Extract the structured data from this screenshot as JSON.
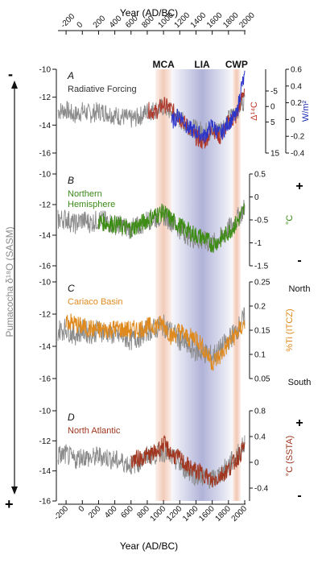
{
  "chart_data": {
    "type": "line",
    "x_label_top": "Year (AD/BC)",
    "x_label_bottom": "Year (AD/BC)",
    "x_ticks": [
      "-200",
      "0",
      "200",
      "400",
      "600",
      "800",
      "1000",
      "1200",
      "1400",
      "1600",
      "1800",
      "2000"
    ],
    "x_tick_values": [
      -200,
      0,
      200,
      400,
      600,
      800,
      1000,
      1200,
      1400,
      1600,
      1800,
      2000
    ],
    "xlim": [
      -300,
      2010
    ],
    "left_axis": {
      "label": "Pumacocha δ¹⁸O (SASM)",
      "top_sign": "-",
      "bottom_sign": "+",
      "ylim": [
        -16,
        -10
      ],
      "ticks": [
        "-10",
        "-12",
        "-14",
        "-16"
      ],
      "tick_values": [
        -10,
        -12,
        -14,
        -16
      ]
    },
    "bands": [
      {
        "label": "MCA",
        "start": 900,
        "end": 1100,
        "color": "#e8a07f"
      },
      {
        "label": "LIA",
        "start": 1100,
        "end": 1850,
        "color": "#6f74b8"
      },
      {
        "label": "CWP",
        "start": 1850,
        "end": 1950,
        "color": "#e8a07f"
      }
    ],
    "panels": [
      {
        "letter": "A",
        "series_label": "Radiative Forcing",
        "label_color": "#333333",
        "right_axes": [
          {
            "label": "Δ¹⁴C",
            "color": "#c0392b",
            "ticks": [
              "-5",
              "0",
              "5",
              "15"
            ],
            "tick_values": [
              -5,
              0,
              5,
              15
            ],
            "ylim": [
              15,
              -12
            ]
          },
          {
            "label": "W/m²",
            "color": "#1f2fb5",
            "ticks": [
              "0.6",
              "0.4",
              "0.2",
              "0",
              "-0.2",
              "-0.4"
            ],
            "tick_values": [
              0.6,
              0.4,
              0.2,
              0,
              -0.2,
              -0.4
            ],
            "ylim": [
              -0.4,
              0.6
            ]
          }
        ],
        "overlay": {
          "color": "#b03a2e",
          "x": [
            800,
            900,
            1000,
            1100,
            1200,
            1300,
            1400,
            1500,
            1600,
            1700,
            1800,
            1900,
            2000
          ],
          "y": [
            -12.9,
            -13.1,
            -12.5,
            -12.9,
            -13.5,
            -14.1,
            -14.9,
            -15.3,
            -14.2,
            -14.9,
            -13.8,
            -13.4,
            -11.3
          ]
        },
        "overlay2": {
          "color": "#2d36c9",
          "x": [
            1100,
            1200,
            1300,
            1400,
            1500,
            1600,
            1700,
            1800,
            1900,
            1960,
            2000
          ],
          "y": [
            -13.8,
            -13.2,
            -14.2,
            -14.5,
            -14.8,
            -14.0,
            -14.7,
            -13.8,
            -13.3,
            -11.2,
            -10.6
          ]
        }
      },
      {
        "letter": "B",
        "series_label": "Northern Hemisphere",
        "series_label_line1": "Northern",
        "series_label_line2": "Hemisphere",
        "label_color": "#3a8a16",
        "right_axes": [
          {
            "label": "°C",
            "color": "#3a8a16",
            "ticks": [
              "0.5",
              "0",
              "-0.5",
              "-1",
              "-1.5"
            ],
            "tick_values": [
              0.5,
              0,
              -0.5,
              -1,
              -1.5
            ],
            "ylim": [
              -1.5,
              0.5
            ]
          }
        ],
        "right_top_sign": "+",
        "right_bottom_sign": "-",
        "overlay": {
          "color": "#3d8c14",
          "x": [
            200,
            400,
            600,
            800,
            900,
            1000,
            1100,
            1200,
            1300,
            1400,
            1500,
            1600,
            1700,
            1800,
            1900,
            2000
          ],
          "y": [
            -13.1,
            -13.3,
            -13.6,
            -13.0,
            -12.7,
            -12.5,
            -13.0,
            -13.4,
            -13.7,
            -14.0,
            -14.2,
            -14.6,
            -14.3,
            -13.8,
            -13.2,
            -12.3
          ]
        }
      },
      {
        "letter": "C",
        "series_label": "Cariaco Basin",
        "label_color": "#e08a1e",
        "right_axes": [
          {
            "label": "%Ti (ITCZ)",
            "color": "#e08a1e",
            "ticks": [
              "0.25",
              "0.2",
              "0.15",
              "0.1",
              "0.05"
            ],
            "tick_values": [
              0.25,
              0.2,
              0.15,
              0.1,
              0.05
            ],
            "ylim": [
              0.05,
              0.25
            ]
          }
        ],
        "right_top_label": "North",
        "right_bottom_label": "South",
        "overlay": {
          "color": "#e08a1e",
          "x": [
            -200,
            0,
            200,
            400,
            600,
            800,
            1000,
            1100,
            1200,
            1300,
            1400,
            1500,
            1600,
            1700,
            1800,
            1900,
            2000
          ],
          "y": [
            -12.4,
            -12.8,
            -13.0,
            -12.9,
            -13.0,
            -12.8,
            -12.6,
            -13.4,
            -13.0,
            -13.5,
            -13.4,
            -14.2,
            -15.0,
            -14.6,
            -13.8,
            -13.2,
            -12.6
          ]
        }
      },
      {
        "letter": "D",
        "series_label": "North Atlantic",
        "label_color": "#a0361f",
        "right_axes": [
          {
            "label": "°C (SSTA)",
            "color": "#a0361f",
            "ticks": [
              "0.8",
              "0.4",
              "0",
              "-0.4"
            ],
            "tick_values": [
              0.8,
              0.4,
              0,
              -0.4
            ],
            "ylim": [
              -0.6,
              0.8
            ]
          }
        ],
        "right_top_sign": "+",
        "right_bottom_sign": "-",
        "overlay": {
          "color": "#a0361f",
          "x": [
            600,
            800,
            900,
            1000,
            1100,
            1200,
            1300,
            1400,
            1500,
            1600,
            1700,
            1800,
            1900,
            2000
          ],
          "y": [
            -13.3,
            -13.0,
            -12.8,
            -12.2,
            -12.9,
            -13.2,
            -13.7,
            -14.0,
            -14.2,
            -14.7,
            -14.3,
            -13.9,
            -13.2,
            -12.4
          ]
        }
      }
    ],
    "base_series": {
      "name": "",
      "color": "#8a8a8a",
      "x": [
        -300,
        -200,
        -100,
        0,
        100,
        200,
        300,
        400,
        500,
        600,
        700,
        800,
        900,
        1000,
        1100,
        1200,
        1300,
        1400,
        1500,
        1600,
        1700,
        1800,
        1900,
        2000
      ],
      "y": [
        -13.0,
        -12.9,
        -13.3,
        -13.0,
        -13.2,
        -13.0,
        -13.1,
        -13.3,
        -13.4,
        -13.6,
        -13.4,
        -13.0,
        -12.9,
        -12.7,
        -13.1,
        -13.6,
        -14.0,
        -14.3,
        -14.4,
        -14.6,
        -14.2,
        -13.6,
        -13.0,
        -12.2
      ]
    }
  }
}
